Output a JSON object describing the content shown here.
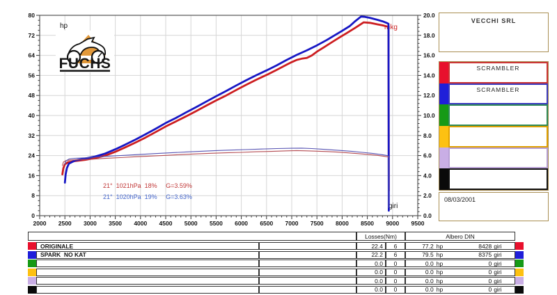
{
  "chart": {
    "y_left_title": "hp",
    "y_right_title": "mkg",
    "x_bottom_title": "giri",
    "annotation_red": "21°  1021hPa  18%     G=3.59%",
    "annotation_blue": "21°  1020hPa  19%     G=3.63%"
  },
  "logo": {
    "brand": "FUCHS"
  },
  "chart_data": {
    "type": "line",
    "title": "",
    "xlabel": "giri",
    "ylabel_left": "hp",
    "ylabel_right": "mkg",
    "x_axis": {
      "min": 2000,
      "max": 9500,
      "major_tick": 500,
      "minor_tick": 100
    },
    "y_left_axis": {
      "min": 0,
      "max": 80,
      "major_tick": 8,
      "minor_tick": 2
    },
    "y_right_axis": {
      "min": 0,
      "max": 20,
      "major_tick": 2,
      "minor_tick": 0.4
    },
    "grid": true,
    "legend_position": "external-right-panel",
    "series": [
      {
        "name": "ORIGINALE power (hp)",
        "axis": "left",
        "color": "#cc1d20",
        "width": 2.8,
        "points": [
          [
            2450,
            16.5
          ],
          [
            2470,
            19
          ],
          [
            2500,
            20.5
          ],
          [
            2560,
            21.3
          ],
          [
            2700,
            21.8
          ],
          [
            2900,
            22.3
          ],
          [
            3100,
            23
          ],
          [
            3300,
            24
          ],
          [
            3500,
            25.5
          ],
          [
            3700,
            27.3
          ],
          [
            3900,
            29.2
          ],
          [
            4100,
            31.2
          ],
          [
            4300,
            33.4
          ],
          [
            4500,
            35.6
          ],
          [
            4700,
            37.6
          ],
          [
            4900,
            39.6
          ],
          [
            5100,
            41.7
          ],
          [
            5300,
            43.9
          ],
          [
            5500,
            46
          ],
          [
            5700,
            48
          ],
          [
            5900,
            50.2
          ],
          [
            6100,
            52.3
          ],
          [
            6300,
            54.3
          ],
          [
            6500,
            56.2
          ],
          [
            6700,
            58.2
          ],
          [
            6900,
            60.3
          ],
          [
            7000,
            61.3
          ],
          [
            7100,
            62.2
          ],
          [
            7200,
            62.7
          ],
          [
            7300,
            63
          ],
          [
            7400,
            64
          ],
          [
            7500,
            65.5
          ],
          [
            7650,
            67.4
          ],
          [
            7800,
            69.3
          ],
          [
            7950,
            71.2
          ],
          [
            8100,
            73
          ],
          [
            8250,
            74.9
          ],
          [
            8428,
            77.2
          ],
          [
            8550,
            77
          ],
          [
            8700,
            76.4
          ],
          [
            8800,
            76
          ],
          [
            8880,
            75.6
          ],
          [
            8920,
            75.4
          ],
          [
            8925,
            10
          ]
        ]
      },
      {
        "name": "SPARK NO KAT power (hp)",
        "axis": "left",
        "color": "#1717c4",
        "width": 2.8,
        "points": [
          [
            2500,
            13.2
          ],
          [
            2515,
            16.5
          ],
          [
            2540,
            19
          ],
          [
            2580,
            20.8
          ],
          [
            2700,
            22
          ],
          [
            2900,
            22.8
          ],
          [
            3100,
            23.6
          ],
          [
            3300,
            24.8
          ],
          [
            3500,
            26.5
          ],
          [
            3700,
            28.4
          ],
          [
            3900,
            30.4
          ],
          [
            4100,
            32.5
          ],
          [
            4300,
            34.7
          ],
          [
            4500,
            37
          ],
          [
            4700,
            39
          ],
          [
            4900,
            41.2
          ],
          [
            5100,
            43.3
          ],
          [
            5300,
            45.5
          ],
          [
            5500,
            47.7
          ],
          [
            5700,
            49.8
          ],
          [
            5900,
            52
          ],
          [
            6100,
            54.1
          ],
          [
            6300,
            56.1
          ],
          [
            6500,
            58
          ],
          [
            6700,
            60
          ],
          [
            6900,
            62.2
          ],
          [
            7100,
            64.2
          ],
          [
            7300,
            66
          ],
          [
            7500,
            68
          ],
          [
            7700,
            70.2
          ],
          [
            7850,
            72
          ],
          [
            8000,
            73.8
          ],
          [
            8150,
            75.7
          ],
          [
            8250,
            77.5
          ],
          [
            8375,
            79.5
          ],
          [
            8450,
            79.4
          ],
          [
            8550,
            79
          ],
          [
            8700,
            78.2
          ],
          [
            8800,
            77.6
          ],
          [
            8880,
            77
          ],
          [
            8920,
            76.6
          ],
          [
            8925,
            2
          ]
        ]
      },
      {
        "name": "ORIGINALE torque (mkg)",
        "axis": "right",
        "color": "#b44a50",
        "width": 1.1,
        "points": [
          [
            2450,
            5.0
          ],
          [
            2470,
            5.35
          ],
          [
            2520,
            5.5
          ],
          [
            2600,
            5.55
          ],
          [
            2800,
            5.58
          ],
          [
            3000,
            5.62
          ],
          [
            3300,
            5.72
          ],
          [
            3600,
            5.8
          ],
          [
            3900,
            5.88
          ],
          [
            4200,
            5.95
          ],
          [
            4500,
            6.02
          ],
          [
            4800,
            6.1
          ],
          [
            5100,
            6.17
          ],
          [
            5400,
            6.23
          ],
          [
            5700,
            6.28
          ],
          [
            6000,
            6.32
          ],
          [
            6300,
            6.38
          ],
          [
            6600,
            6.42
          ],
          [
            6900,
            6.47
          ],
          [
            7100,
            6.5
          ],
          [
            7300,
            6.47
          ],
          [
            7500,
            6.44
          ],
          [
            7700,
            6.4
          ],
          [
            7900,
            6.35
          ],
          [
            8100,
            6.28
          ],
          [
            8300,
            6.2
          ],
          [
            8500,
            6.12
          ],
          [
            8700,
            6.02
          ],
          [
            8900,
            5.88
          ],
          [
            8920,
            5.85
          ]
        ]
      },
      {
        "name": "SPARK NO KAT torque (mkg)",
        "axis": "right",
        "color": "#5552b2",
        "width": 1.1,
        "points": [
          [
            2500,
            5.1
          ],
          [
            2520,
            5.45
          ],
          [
            2580,
            5.65
          ],
          [
            2700,
            5.72
          ],
          [
            2900,
            5.78
          ],
          [
            3100,
            5.85
          ],
          [
            3400,
            5.95
          ],
          [
            3700,
            6.03
          ],
          [
            4000,
            6.12
          ],
          [
            4300,
            6.2
          ],
          [
            4600,
            6.28
          ],
          [
            4900,
            6.36
          ],
          [
            5200,
            6.43
          ],
          [
            5500,
            6.5
          ],
          [
            5800,
            6.55
          ],
          [
            6100,
            6.6
          ],
          [
            6400,
            6.65
          ],
          [
            6700,
            6.7
          ],
          [
            7000,
            6.73
          ],
          [
            7200,
            6.74
          ],
          [
            7400,
            6.7
          ],
          [
            7600,
            6.64
          ],
          [
            7800,
            6.57
          ],
          [
            8000,
            6.5
          ],
          [
            8200,
            6.42
          ],
          [
            8400,
            6.32
          ],
          [
            8600,
            6.22
          ],
          [
            8800,
            6.08
          ],
          [
            8900,
            6.0
          ],
          [
            8922,
            5.9
          ],
          [
            8926,
            0.8
          ]
        ]
      }
    ]
  },
  "side_panel": {
    "company": "VECCHI SRL",
    "date": "08/03/2001",
    "legend": [
      {
        "label": "SCRAMBLER",
        "color": "#e8112d",
        "border": "#c33"
      },
      {
        "label": "SCRAMBLER",
        "color": "#1f1fd9",
        "border": "#3a3ac0"
      },
      {
        "label": "",
        "color": "#169a16",
        "border": "#2e8b57"
      },
      {
        "label": "",
        "color": "#fdc112",
        "border": "#e0a000"
      },
      {
        "label": "",
        "color": "#c9aee5",
        "border": "#b79fd4"
      },
      {
        "label": "",
        "color": "#0a0a0a",
        "border": "#111111"
      }
    ]
  },
  "table": {
    "header_losses": "Losses(Nm)",
    "header_albero": "Albero DIN",
    "rows": [
      {
        "name": "ORIGINALE",
        "loss_nm": "22.4",
        "loss_n": "6",
        "hp": "77.2",
        "hp_unit": "hp",
        "giri": "8428",
        "giri_unit": "giri",
        "color": "#e8112d"
      },
      {
        "name": "SPARK  NO KAT",
        "loss_nm": "22.2",
        "loss_n": "6",
        "hp": "79.5",
        "hp_unit": "hp",
        "giri": "8375",
        "giri_unit": "giri",
        "color": "#1f1fd9"
      },
      {
        "name": "",
        "loss_nm": "0.0",
        "loss_n": "0",
        "hp": "0.0",
        "hp_unit": "hp",
        "giri": "0",
        "giri_unit": "giri",
        "color": "#169a16"
      },
      {
        "name": "",
        "loss_nm": "0.0",
        "loss_n": "0",
        "hp": "0.0",
        "hp_unit": "hp",
        "giri": "0",
        "giri_unit": "giri",
        "color": "#fdc112"
      },
      {
        "name": "",
        "loss_nm": "0.0",
        "loss_n": "0",
        "hp": "0.0",
        "hp_unit": "hp",
        "giri": "0",
        "giri_unit": "giri",
        "color": "#c9aee5"
      },
      {
        "name": "",
        "loss_nm": "0.0",
        "loss_n": "0",
        "hp": "0.0",
        "hp_unit": "hp",
        "giri": "0",
        "giri_unit": "giri",
        "color": "#0a0a0a"
      }
    ]
  }
}
